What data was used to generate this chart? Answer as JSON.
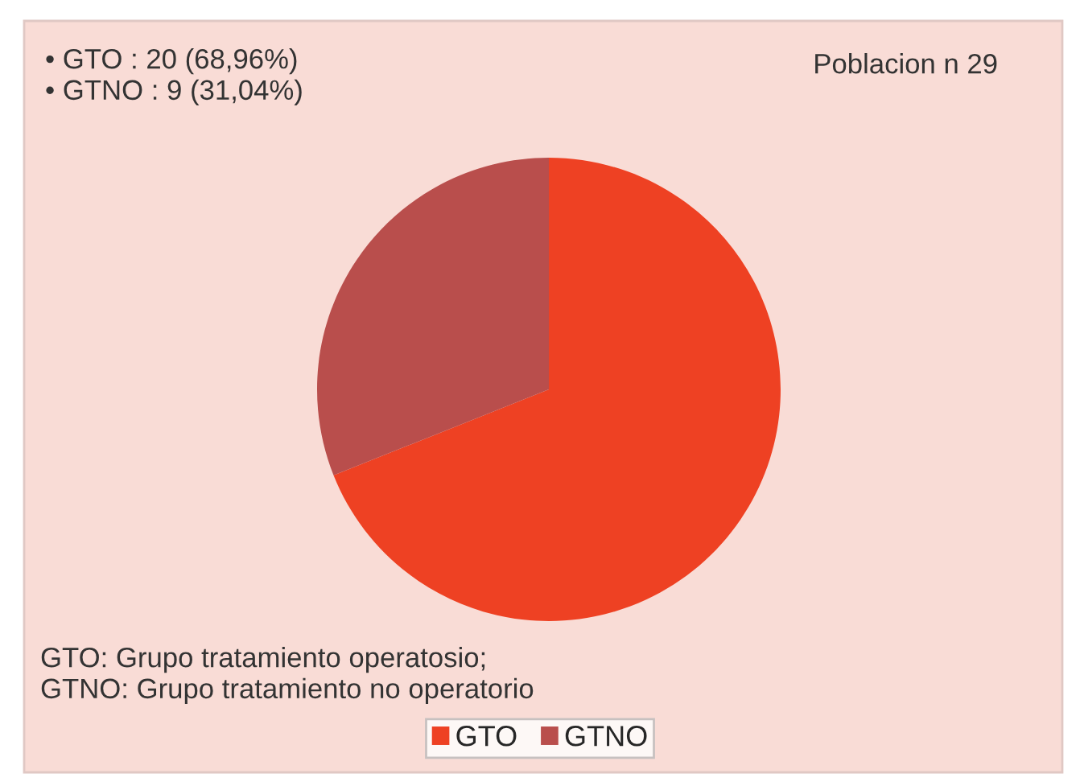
{
  "chart_data": {
    "type": "pie",
    "categories": [
      "GTO",
      "GTNO"
    ],
    "values": [
      68.96,
      31.04
    ],
    "colors": [
      "#ee4123",
      "#b94e4c"
    ],
    "legend": "bottom",
    "annotations": [
      "• GTO : 20 (68,96%)\n• GTNO : 9 (31,04%)",
      "Poblacion n 29",
      "GTO: Grupo tratamiento operatosio;\nGTNO: Grupo tratamiento no operatorio"
    ]
  }
}
